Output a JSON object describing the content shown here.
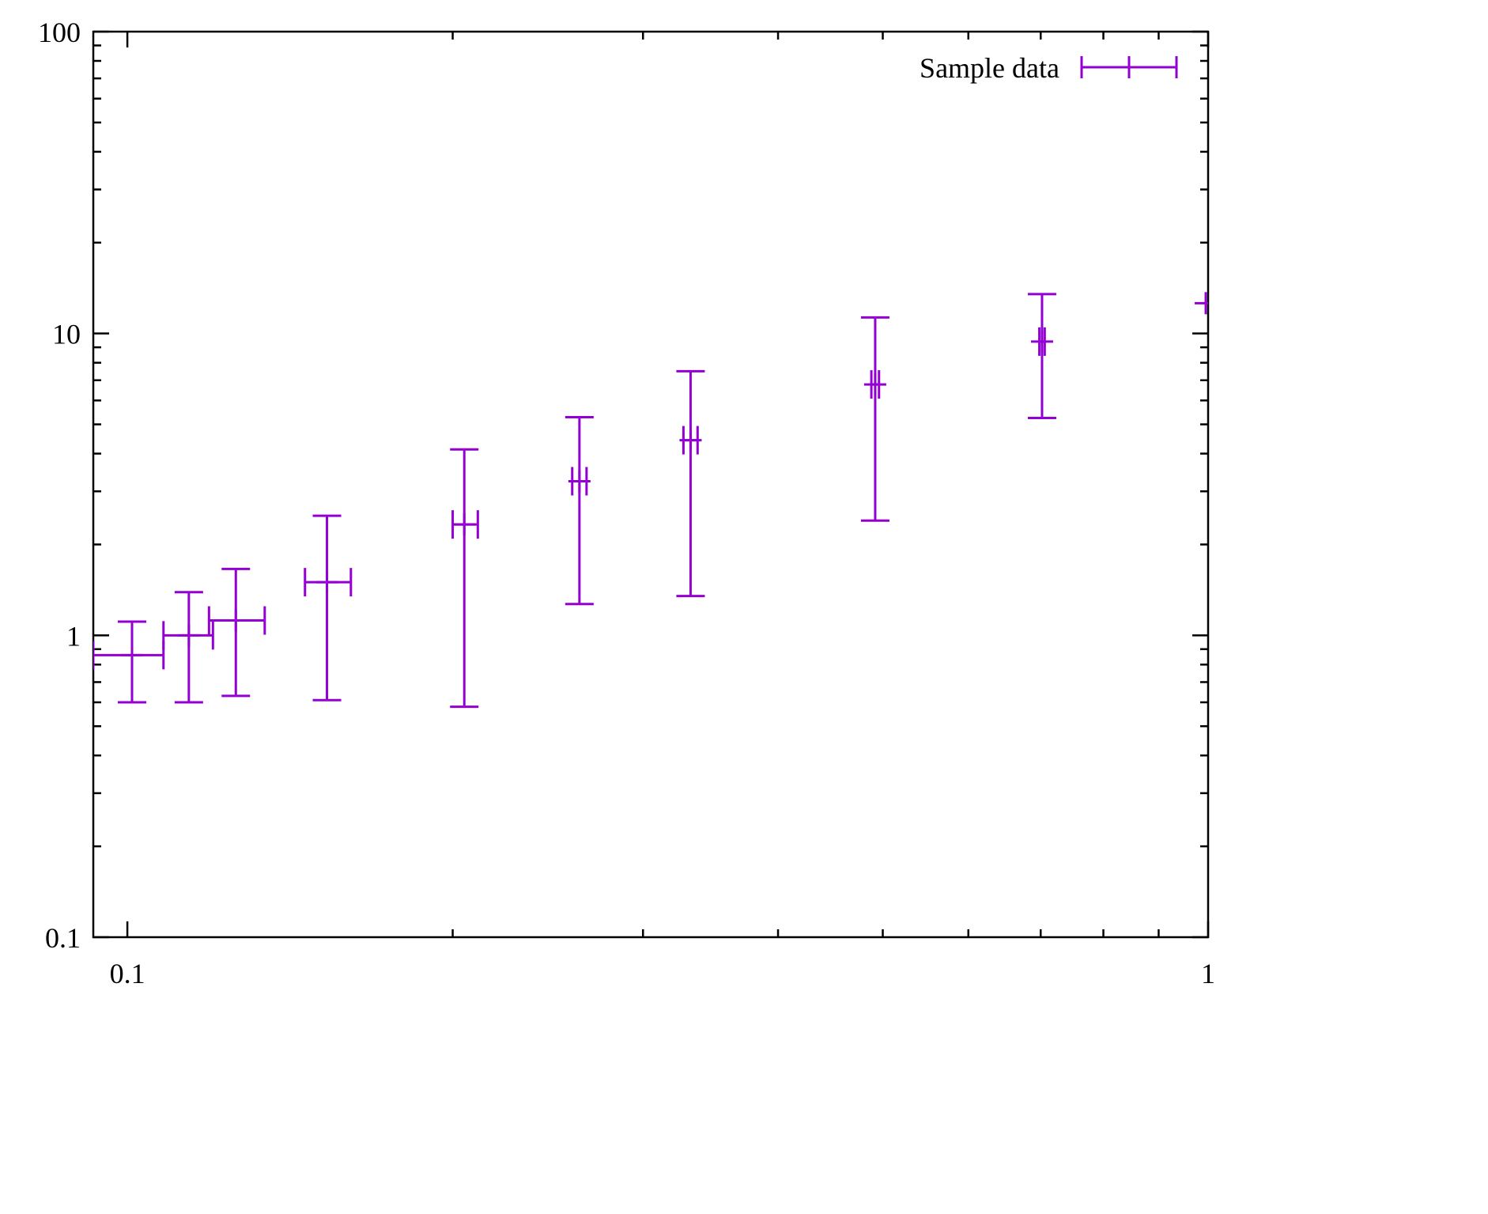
{
  "chart_data": {
    "type": "scatter",
    "title": "",
    "grid": false,
    "axis_color": "#000000",
    "background": "#ffffff",
    "legend": {
      "position": "top-right-inside",
      "entries": [
        {
          "label": "Sample data",
          "color": "#9400D3",
          "sample": "xy-errorbar-with-plus-marker"
        }
      ]
    },
    "x_axis": {
      "scale": "log",
      "range": [
        0.093,
        1.0
      ],
      "ticks": [
        {
          "v": 0.1,
          "label": "0.1"
        },
        {
          "v": 1,
          "label": "1"
        }
      ],
      "minor_ticks": "log-decades",
      "label": ""
    },
    "y_axis": {
      "scale": "log",
      "range": [
        0.1,
        100
      ],
      "ticks": [
        {
          "v": 0.1,
          "label": "0.1"
        },
        {
          "v": 1,
          "label": "1"
        },
        {
          "v": 10,
          "label": "10"
        },
        {
          "v": 100,
          "label": "100"
        }
      ],
      "minor_ticks": "log-decades",
      "label": ""
    },
    "series": [
      {
        "name": "Sample data",
        "color": "#9400D3",
        "marker": "plus",
        "error_bars": "xy",
        "points": [
          {
            "x": 0.101,
            "y": 0.86,
            "xlow": 0.093,
            "xhigh": 0.108,
            "ylow": 0.6,
            "yhigh": 1.11
          },
          {
            "x": 0.114,
            "y": 1.0,
            "xlow": 0.108,
            "xhigh": 0.12,
            "ylow": 0.6,
            "yhigh": 1.39
          },
          {
            "x": 0.126,
            "y": 1.12,
            "xlow": 0.119,
            "xhigh": 0.134,
            "ylow": 0.63,
            "yhigh": 1.66
          },
          {
            "x": 0.153,
            "y": 1.5,
            "xlow": 0.146,
            "xhigh": 0.161,
            "ylow": 0.61,
            "yhigh": 2.49
          },
          {
            "x": 0.205,
            "y": 2.33,
            "xlow": 0.2,
            "xhigh": 0.211,
            "ylow": 0.58,
            "yhigh": 4.13
          },
          {
            "x": 0.262,
            "y": 3.24,
            "xlow": 0.258,
            "xhigh": 0.266,
            "ylow": 1.27,
            "yhigh": 5.28
          },
          {
            "x": 0.332,
            "y": 4.43,
            "xlow": 0.327,
            "xhigh": 0.337,
            "ylow": 1.35,
            "yhigh": 7.5
          },
          {
            "x": 0.492,
            "y": 6.78,
            "xlow": 0.488,
            "xhigh": 0.496,
            "ylow": 2.4,
            "yhigh": 11.3
          },
          {
            "x": 0.702,
            "y": 9.4,
            "xlow": 0.698,
            "xhigh": 0.706,
            "ylow": 5.25,
            "yhigh": 13.5
          },
          {
            "x": 0.995,
            "y": 12.6,
            "xlow": 0.995,
            "xhigh": 0.995,
            "ylow": 12.6,
            "yhigh": 12.6
          }
        ]
      }
    ]
  }
}
